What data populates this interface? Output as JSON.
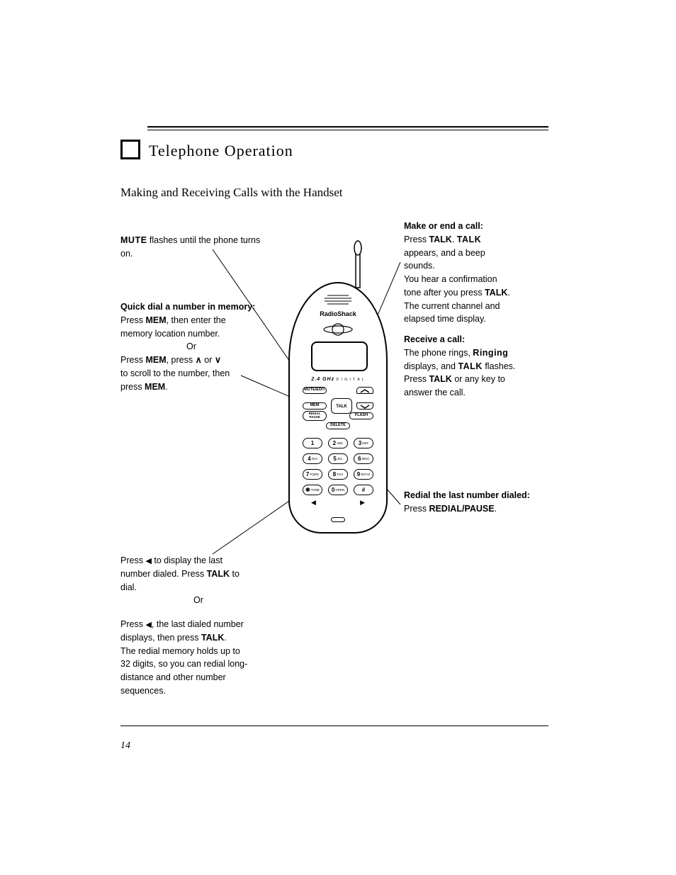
{
  "section": {
    "title": "Telephone Operation",
    "subtitle": "Making and Receiving Calls with the Handset"
  },
  "callouts": {
    "mute": {
      "label": "MUTE",
      "text": " flashes until the phone turns on."
    },
    "mem": {
      "heading": "Quick dial a number in memory:",
      "line1_pre": "Press ",
      "line1_btn": "MEM",
      "line1_mid": ", then enter the",
      "line2": "memory location number.",
      "line3": "Or",
      "line4_pre": "Press ",
      "line4_btn1": "MEM",
      "line4_mid": ", press ",
      "line4_btn2": "∧",
      "line4_or": " or ",
      "line4_btn3": "∨",
      "line5_pre": "to scroll to the number, then",
      "line6_pre": "press ",
      "line6_btn": "MEM",
      "line6_end": "."
    },
    "talk": {
      "heading": "Make or end a call:",
      "line1_pre": "Press ",
      "line1_btn": "TALK",
      "line1_post": ". ",
      "line1_bold": "TALK",
      "line2": "appears, and a beep",
      "line3": "sounds.",
      "line4_pre": "You hear a confirmation",
      "line5_pre": "tone after you press ",
      "line5_btn": "TALK",
      "line5_end": ".",
      "line6": "The current channel and",
      "line7": "elapsed time display.",
      "sub_heading": "Receive a call:",
      "sub1_pre": "The phone rings, ",
      "sub1_bold": "Ringing",
      "sub2_pre": "displays, and ",
      "sub2_bold": "TALK",
      "sub2_post": " flashes.",
      "sub3_pre": "Press ",
      "sub3_btn": "TALK",
      "sub3_post": " or any key  to",
      "sub4": "answer the call."
    },
    "redial": {
      "heading": "Redial the last number dialed:",
      "line1_pre": "Press ",
      "line1_btn": "REDIAL/PAUSE",
      "line1_post": "."
    },
    "left1": {
      "line1_pre": "Press ",
      "line1_sym": "◀",
      "line1_post": " to display the last",
      "line2_pre": "number dialed. Press ",
      "line2_btn": "TALK",
      "line2_end": " to",
      "line3": "dial.",
      "line4": "Or"
    },
    "left2": {
      "line1_pre": "Press ",
      "line1_sym": "◀",
      "line1_post": ", the last dialed number",
      "line2_pre": "displays, then press ",
      "line2_btn": "TALK",
      "line2_end": ".",
      "line3": "The redial memory holds up to",
      "line4": "32 digits, so you can redial long-",
      "line5": "distance and other number",
      "line6": "sequences."
    }
  },
  "phone": {
    "brand": "RadioShack",
    "band": "2.4 GHz",
    "band_suffix": " D I G I T A L",
    "buttons": {
      "mute": "MUTE/EDIT",
      "mem": "MEM",
      "talk": "TALK",
      "redial": "REDIAL\nPAUSE",
      "flash": "FLASH",
      "delete": "DELETE"
    },
    "keypad": [
      [
        {
          "n": "1",
          "l": ""
        },
        {
          "n": "2",
          "l": "ABC"
        },
        {
          "n": "3",
          "l": "DEF"
        }
      ],
      [
        {
          "n": "4",
          "l": "GHI"
        },
        {
          "n": "5",
          "l": "JKL"
        },
        {
          "n": "6",
          "l": "MNO"
        }
      ],
      [
        {
          "n": "7",
          "l": "PQRS"
        },
        {
          "n": "8",
          "l": "TUV"
        },
        {
          "n": "9",
          "l": "WXYZ"
        }
      ],
      [
        {
          "n": "✱",
          "l": "TONE"
        },
        {
          "n": "0",
          "l": "OPER"
        },
        {
          "n": "#",
          "l": ""
        }
      ]
    ]
  },
  "page_number": "14",
  "colors": {
    "fg": "#000000",
    "bg": "#ffffff"
  }
}
